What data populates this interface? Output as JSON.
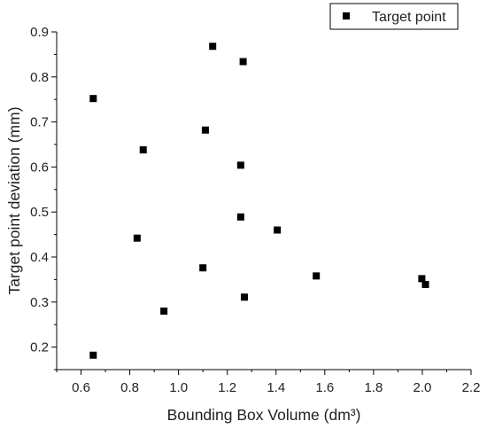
{
  "chart_data": {
    "type": "scatter",
    "xlabel": "Bounding Box Volume (dm³)",
    "ylabel": "Target point deviation (mm)",
    "xlim": [
      0.5,
      2.2
    ],
    "ylim": [
      0.15,
      0.9
    ],
    "xticks": [
      "0.6",
      "0.8",
      "1.0",
      "1.2",
      "1.4",
      "1.6",
      "1.8",
      "2.0",
      "2.2"
    ],
    "xtick_values": [
      0.6,
      0.8,
      1.0,
      1.2,
      1.4,
      1.6,
      1.8,
      2.0,
      2.2
    ],
    "yticks": [
      "0.2",
      "0.3",
      "0.4",
      "0.5",
      "0.6",
      "0.7",
      "0.8",
      "0.9"
    ],
    "ytick_values": [
      0.2,
      0.3,
      0.4,
      0.5,
      0.6,
      0.7,
      0.8,
      0.9
    ],
    "grid": false,
    "legend": {
      "position": "top-right",
      "entries": [
        "Target point"
      ]
    },
    "series": [
      {
        "name": "Target point",
        "marker": "square",
        "color": "#000000",
        "points": [
          {
            "x": 0.65,
            "y": 0.752
          },
          {
            "x": 0.65,
            "y": 0.182
          },
          {
            "x": 0.83,
            "y": 0.442
          },
          {
            "x": 0.855,
            "y": 0.638
          },
          {
            "x": 0.94,
            "y": 0.28
          },
          {
            "x": 1.1,
            "y": 0.376
          },
          {
            "x": 1.11,
            "y": 0.682
          },
          {
            "x": 1.14,
            "y": 0.868
          },
          {
            "x": 1.255,
            "y": 0.604
          },
          {
            "x": 1.255,
            "y": 0.489
          },
          {
            "x": 1.265,
            "y": 0.834
          },
          {
            "x": 1.27,
            "y": 0.311
          },
          {
            "x": 1.405,
            "y": 0.46
          },
          {
            "x": 1.565,
            "y": 0.358
          },
          {
            "x": 1.998,
            "y": 0.352
          },
          {
            "x": 2.013,
            "y": 0.339
          }
        ]
      }
    ]
  }
}
